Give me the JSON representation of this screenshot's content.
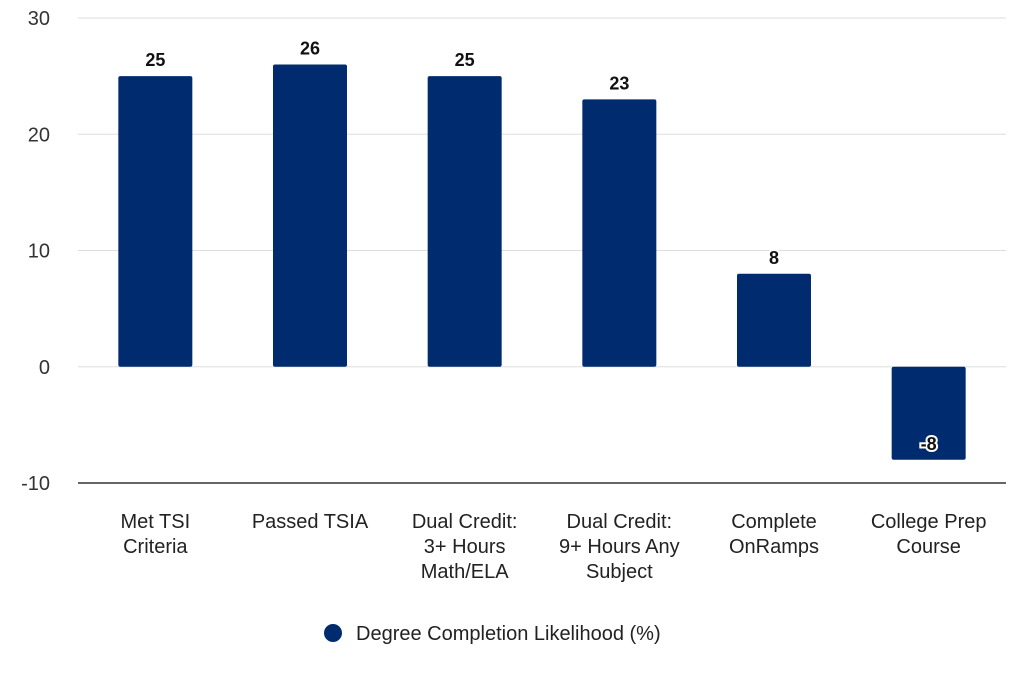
{
  "chart_data": {
    "type": "bar",
    "categories": [
      [
        "Met TSI",
        "Criteria"
      ],
      [
        "Passed TSIA"
      ],
      [
        "Dual Credit:",
        "3+ Hours",
        "Math/ELA"
      ],
      [
        "Dual Credit:",
        "9+ Hours Any",
        "Subject"
      ],
      [
        "Complete",
        "OnRamps"
      ],
      [
        "College Prep",
        "Course"
      ]
    ],
    "series": [
      {
        "name": "Degree Completion Likelihood (%)",
        "values": [
          25,
          26,
          25,
          23,
          8,
          -8
        ],
        "color": "#002B6E"
      }
    ],
    "data_labels": [
      "25",
      "26",
      "25",
      "23",
      "8",
      "-8"
    ],
    "y_ticks": [
      "30",
      "20",
      "10",
      "0",
      "-10"
    ],
    "ylim": [
      -10,
      30
    ],
    "grid": true,
    "legend_position": "bottom"
  }
}
